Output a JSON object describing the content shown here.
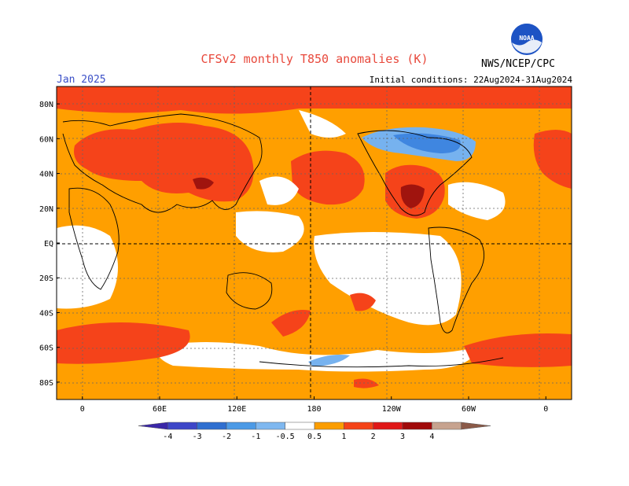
{
  "header": {
    "title": "CFSv2 monthly T850 anomalies (K)",
    "valid_month": "Jan 2025",
    "initial_conditions": "Initial conditions: 22Aug2024-31Aug2024",
    "agency": "NWS/NCEP/CPC",
    "logo_text": "NOAA"
  },
  "map": {
    "lat_labels": [
      "80N",
      "60N",
      "40N",
      "20N",
      "EQ",
      "20S",
      "40S",
      "60S",
      "80S"
    ],
    "lat_values": [
      80,
      60,
      40,
      20,
      0,
      -20,
      -40,
      -60,
      -80
    ],
    "lon_labels": [
      "0",
      "60E",
      "120E",
      "180",
      "120W",
      "60W",
      "0"
    ],
    "lon_values": [
      0,
      60,
      120,
      180,
      240,
      300,
      360
    ],
    "lon_range": [
      -20,
      380
    ],
    "lat_range": [
      -90,
      90
    ]
  },
  "colorbar": {
    "labels": [
      "-4",
      "-3",
      "-2",
      "-1",
      "-0.5",
      "0.5",
      "1",
      "2",
      "3",
      "4"
    ],
    "colors": [
      "#3b27a8",
      "#3d46c8",
      "#2f6fd0",
      "#4c9ae6",
      "#7fb8f0",
      "#ffffff",
      "#fb9d00",
      "#f54318",
      "#e01818",
      "#a00a0a",
      "#c7a38f",
      "#8b5a48"
    ]
  },
  "palette": {
    "warm1": "#ff9f00",
    "warm2": "#f5431a",
    "warm3": "#a0140e",
    "cool1": "#76b2ef",
    "cool2": "#3f86e0"
  }
}
